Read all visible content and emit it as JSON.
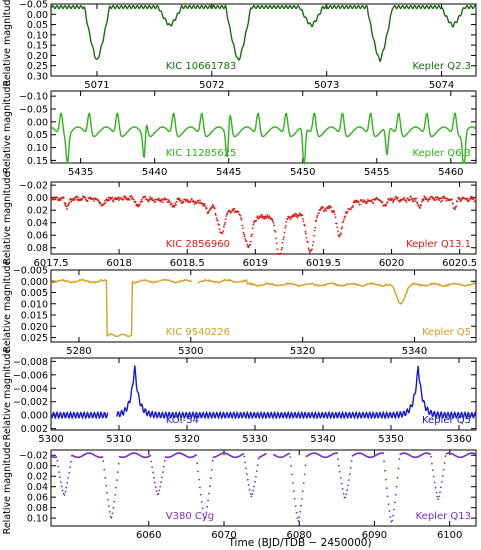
{
  "figure": {
    "xlabel": "Time   (BJD/TDB − 2450000)",
    "ylabel": "Relative magnitude"
  },
  "chart_data": [
    {
      "type": "line",
      "color": "#1a6b12",
      "label_left": "KIC 10661783",
      "label_right": "Kepler Q2.3",
      "xlim": [
        5070.6,
        5074.3
      ],
      "ylim": [
        -0.05,
        0.3
      ],
      "y_reversed": true,
      "xticks": [
        5071,
        5072,
        5073,
        5074
      ],
      "yticks": [
        -0.05,
        0.0,
        0.05,
        0.1,
        0.15,
        0.2,
        0.25,
        0.3
      ],
      "ytick_labels": [
        "−0.05",
        "0.00",
        "0.05",
        "0.10",
        "0.15",
        "0.20",
        "0.25",
        "0.30"
      ],
      "features": {
        "period": 1.2313,
        "primary_t0": 5071.0,
        "primary_depth": 0.26,
        "secondary_depth": 0.09,
        "baseline": -0.035,
        "osc_amp": 0.007,
        "osc_period": 0.035
      }
    },
    {
      "type": "line",
      "color": "#31b21d",
      "label_left": "KIC 11285625",
      "label_right": "Kepler Q6.3",
      "xlim": [
        5433.0,
        5461.7
      ],
      "ylim": [
        -0.12,
        0.16
      ],
      "y_reversed": true,
      "xticks": [
        5435,
        5440,
        5445,
        5450,
        5455,
        5460
      ],
      "yticks": [
        -0.1,
        -0.05,
        0.0,
        0.05,
        0.1,
        0.15
      ],
      "ytick_labels": [
        "−0.10",
        "−0.05",
        "0.00",
        "0.05",
        "0.10",
        "0.15"
      ],
      "features": {
        "period": 10.79,
        "primary_t0": 5439.3,
        "primary_depth": 0.15,
        "secondary_t0": 5444.9,
        "secondary_depth": 0.11,
        "puls_period": 1.9,
        "puls_amp": 0.09
      }
    },
    {
      "type": "scatter",
      "color": "#e01a12",
      "label_left": "KIC 2856960",
      "label_right": "Kepler Q13.1",
      "xlim": [
        6017.5,
        6020.62
      ],
      "ylim": [
        -0.025,
        0.09
      ],
      "y_reversed": true,
      "xticks": [
        6017.5,
        6018.0,
        6018.5,
        6019.0,
        6019.5,
        6020.0,
        6020.5
      ],
      "yticks": [
        -0.02,
        0.0,
        0.02,
        0.04,
        0.06,
        0.08
      ],
      "ytick_labels": [
        "−0.02",
        "0.00",
        "0.02",
        "0.04",
        "0.06",
        "0.08"
      ],
      "features": {
        "inner_period": 0.2585,
        "inner_depth": 0.012,
        "event_center": 6019.15,
        "event_depths": [
          0.055,
          0.07,
          0.075,
          0.08,
          0.065
        ]
      }
    },
    {
      "type": "line",
      "color": "#d4a020",
      "label_left": "KIC 9540226",
      "label_right": "Kepler Q5",
      "xlim": [
        5275.0,
        5351.0
      ],
      "ylim": [
        -0.005,
        0.027
      ],
      "y_reversed": true,
      "xticks": [
        5280,
        5300,
        5320,
        5340
      ],
      "yticks": [
        -0.005,
        0.0,
        0.005,
        0.01,
        0.015,
        0.02,
        0.025
      ],
      "ytick_labels": [
        "−0.005",
        "0.000",
        "0.005",
        "0.010",
        "0.015",
        "0.020",
        "0.025"
      ],
      "features": {
        "primary_start": 5285.0,
        "primary_end": 5289.5,
        "primary_depth": 0.024,
        "secondary_center": 5337.5,
        "secondary_depth": 0.008
      }
    },
    {
      "type": "line",
      "color": "#1818cc",
      "label_left": "KOI-54",
      "label_right": "Kepler Q5",
      "xlim": [
        5300.0,
        5362.5
      ],
      "ylim": [
        -0.0085,
        0.0022
      ],
      "y_reversed": true,
      "xticks": [
        5300,
        5310,
        5320,
        5330,
        5340,
        5350,
        5360
      ],
      "yticks": [
        -0.008,
        -0.006,
        -0.004,
        -0.002,
        0.0,
        0.002
      ],
      "ytick_labels": [
        "−0.008",
        "−0.006",
        "−0.004",
        "−0.002",
        "0.000",
        "0.002"
      ],
      "features": {
        "peak_1": 5312.3,
        "peak_2": 5354.0,
        "peak_height": -0.0073,
        "osc_amp": 0.0004,
        "osc_period": 0.5
      }
    },
    {
      "type": "scatter",
      "color": "#7b2fc9",
      "label_left": "V380 Cyg",
      "label_right": "Kepler Q13",
      "xlim": [
        6047.0,
        6103.5
      ],
      "ylim": [
        -0.03,
        0.115
      ],
      "y_reversed": true,
      "xticks": [
        6060,
        6070,
        6080,
        6090,
        6100
      ],
      "yticks": [
        -0.02,
        0.0,
        0.02,
        0.04,
        0.06,
        0.08,
        0.1
      ],
      "ytick_labels": [
        "−0.02",
        "0.00",
        "0.02",
        "0.04",
        "0.06",
        "0.08",
        "0.10"
      ],
      "features": {
        "period": 12.426,
        "primary_t0": 6055.0,
        "primary_depth": 0.105,
        "secondary_t0": 6061.2,
        "secondary_depth": 0.06
      }
    }
  ]
}
